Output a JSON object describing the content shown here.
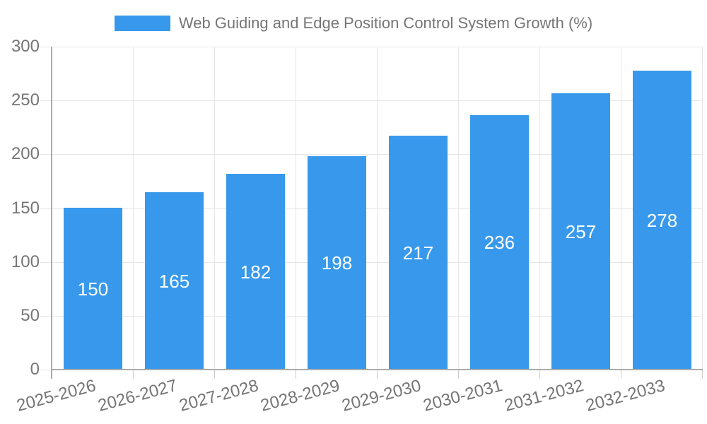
{
  "chart_data": {
    "type": "bar",
    "title": "Web Guiding and Edge Position Control System Growth (%)",
    "categories": [
      "2025-2026",
      "2026-2027",
      "2027-2028",
      "2028-2029",
      "2029-2030",
      "2030-2031",
      "2031-2032",
      "2032-2033"
    ],
    "values": [
      150,
      165,
      182,
      198,
      217,
      236,
      257,
      278
    ],
    "xlabel": "",
    "ylabel": "",
    "ylim": [
      0,
      300
    ],
    "y_ticks": [
      0,
      50,
      100,
      150,
      200,
      250,
      300
    ],
    "grid": true,
    "legend_position": "top-center",
    "value_label_position": "inside-center"
  },
  "colors": {
    "bar": "#3899ec",
    "title_text": "#757575",
    "axis_text": "#757575",
    "grid_line": "#e6e6e6",
    "axis_line": "#ababab",
    "minor_tick": "#cccccc",
    "value_label_text": "#ffffff",
    "background": "#ffffff"
  }
}
